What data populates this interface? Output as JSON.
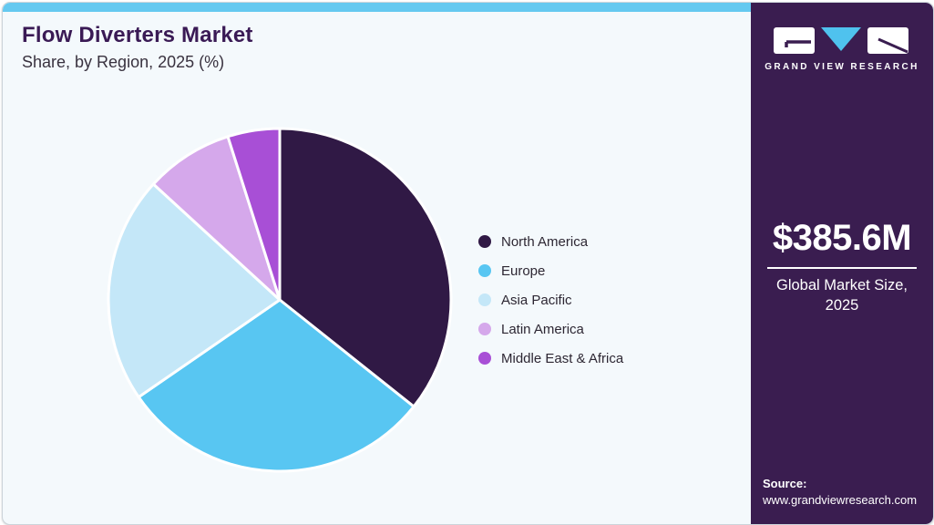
{
  "header": {
    "title": "Flow Diverters Market",
    "subtitle": "Share, by Region, 2025 (%)"
  },
  "chart_data": {
    "type": "pie",
    "title": "Flow Diverters Market Share, by Region, 2025 (%)",
    "categories": [
      "North America",
      "Europe",
      "Asia Pacific",
      "Latin America",
      "Middle East & Africa"
    ],
    "values": [
      35.7,
      29.7,
      21.4,
      8.3,
      4.9
    ],
    "unit": "%",
    "colors": [
      "#301945",
      "#58c6f2",
      "#c4e7f8",
      "#d5a8eb",
      "#a84fd6"
    ],
    "start_angle_deg": 0,
    "direction": "clockwise",
    "legend_position": "right",
    "slice_separator_color": "#ffffff"
  },
  "sidebar": {
    "brand": "GRAND VIEW RESEARCH",
    "market_size": {
      "value": "$385.6M",
      "caption": "Global Market Size, 2025"
    },
    "source": {
      "label": "Source:",
      "url": "www.grandviewresearch.com"
    }
  },
  "theme": {
    "topbar_color": "#65c9f0",
    "panel_bg": "#f4f9fc",
    "sidebar_bg": "#3a1d50",
    "logo_triangle_color": "#4fc2ee",
    "title_color": "#3a1a55"
  }
}
